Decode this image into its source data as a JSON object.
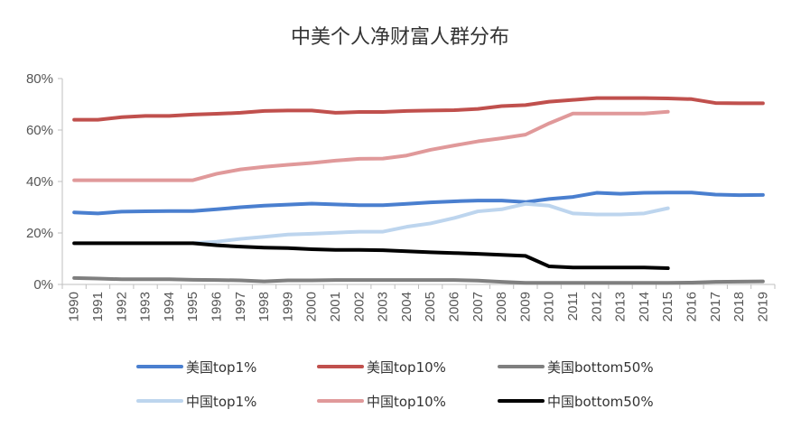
{
  "chart_data": {
    "type": "line",
    "title": "中美个人净财富人群分布",
    "xlabel": "",
    "ylabel": "",
    "ylim": [
      0,
      80
    ],
    "yticks": [
      "0%",
      "20%",
      "40%",
      "60%",
      "80%"
    ],
    "grid": false,
    "legend_position": "bottom",
    "x": [
      "1990",
      "1991",
      "1992",
      "1993",
      "1994",
      "1995",
      "1996",
      "1997",
      "1998",
      "1999",
      "2000",
      "2001",
      "2002",
      "2003",
      "2004",
      "2005",
      "2006",
      "2007",
      "2008",
      "2009",
      "2010",
      "2011",
      "2012",
      "2013",
      "2014",
      "2015",
      "2016",
      "2017",
      "2018",
      "2019"
    ],
    "series": [
      {
        "name": "美国top1%",
        "color": "#4a7fcf",
        "values": [
          28.0,
          27.6,
          28.3,
          28.4,
          28.5,
          28.5,
          29.2,
          30.0,
          30.6,
          31.0,
          31.4,
          31.1,
          30.8,
          30.8,
          31.3,
          31.9,
          32.3,
          32.6,
          32.6,
          32.0,
          33.2,
          34.0,
          35.6,
          35.2,
          35.6,
          35.7,
          35.7,
          34.9,
          34.7,
          34.8
        ]
      },
      {
        "name": "美国top10%",
        "color": "#c0504d",
        "values": [
          64.0,
          64.0,
          65.0,
          65.5,
          65.5,
          66.0,
          66.3,
          66.7,
          67.4,
          67.6,
          67.6,
          66.7,
          67.0,
          67.0,
          67.4,
          67.6,
          67.7,
          68.2,
          69.3,
          69.7,
          71.0,
          71.7,
          72.4,
          72.4,
          72.4,
          72.3,
          72.0,
          70.5,
          70.4,
          70.4
        ]
      },
      {
        "name": "美国bottom50%",
        "color": "#7f7f7f",
        "values": [
          2.5,
          2.3,
          2.0,
          2.0,
          2.0,
          1.8,
          1.7,
          1.6,
          1.2,
          1.6,
          1.6,
          1.7,
          1.7,
          1.7,
          1.7,
          1.7,
          1.7,
          1.5,
          1.0,
          0.6,
          0.6,
          0.6,
          0.6,
          0.6,
          0.6,
          0.6,
          0.7,
          1.0,
          1.1,
          1.2
        ]
      },
      {
        "name": "中国top1%",
        "color": "#bdd5ee",
        "values": [
          null,
          null,
          null,
          null,
          null,
          16.0,
          16.6,
          17.7,
          18.5,
          19.4,
          19.7,
          20.1,
          20.5,
          20.5,
          22.4,
          23.7,
          25.8,
          28.4,
          29.2,
          31.3,
          30.6,
          27.6,
          27.2,
          27.2,
          27.6,
          29.6,
          null,
          null,
          null,
          null
        ]
      },
      {
        "name": "中国top10%",
        "color": "#e0999a",
        "values": [
          40.5,
          40.5,
          40.5,
          40.5,
          40.5,
          40.5,
          43.0,
          44.7,
          45.7,
          46.5,
          47.2,
          48.1,
          48.8,
          48.9,
          50.1,
          52.3,
          54.0,
          55.6,
          56.8,
          58.2,
          62.6,
          66.4,
          66.4,
          66.4,
          66.4,
          67.1,
          null,
          null,
          null,
          null
        ]
      },
      {
        "name": "中国bottom50%",
        "color": "#000000",
        "values": [
          16.0,
          16.0,
          16.0,
          16.0,
          16.0,
          16.0,
          15.2,
          14.7,
          14.3,
          14.1,
          13.7,
          13.4,
          13.4,
          13.3,
          12.9,
          12.5,
          12.2,
          11.9,
          11.5,
          11.1,
          7.0,
          6.6,
          6.6,
          6.6,
          6.6,
          6.3,
          null,
          null,
          null,
          null
        ]
      }
    ]
  }
}
